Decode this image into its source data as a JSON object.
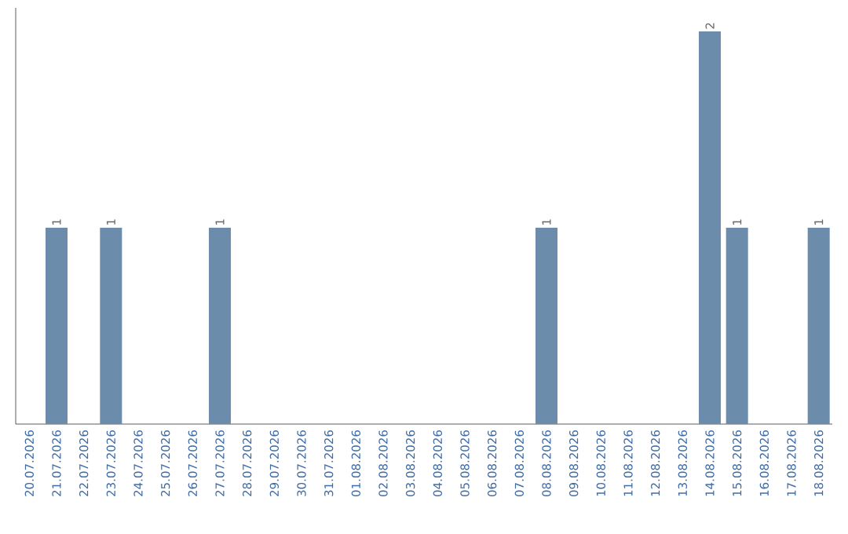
{
  "chart_data": {
    "type": "bar",
    "categories": [
      "20.07.2026",
      "21.07.2026",
      "22.07.2026",
      "23.07.2026",
      "24.07.2026",
      "25.07.2026",
      "26.07.2026",
      "27.07.2026",
      "28.07.2026",
      "29.07.2026",
      "30.07.2026",
      "31.07.2026",
      "01.08.2026",
      "02.08.2026",
      "03.08.2026",
      "04.08.2026",
      "05.08.2026",
      "06.08.2026",
      "07.08.2026",
      "08.08.2026",
      "09.08.2026",
      "10.08.2026",
      "11.08.2026",
      "12.08.2026",
      "13.08.2026",
      "14.08.2026",
      "15.08.2026",
      "16.08.2026",
      "17.08.2026",
      "18.08.2026"
    ],
    "values": [
      0,
      1,
      0,
      1,
      0,
      0,
      0,
      1,
      0,
      0,
      0,
      0,
      0,
      0,
      0,
      0,
      0,
      0,
      0,
      1,
      0,
      0,
      0,
      0,
      0,
      2,
      1,
      0,
      0,
      1
    ],
    "value_labels": [
      null,
      "1",
      null,
      "1",
      null,
      null,
      null,
      "1",
      null,
      null,
      null,
      null,
      null,
      null,
      null,
      null,
      null,
      null,
      null,
      "1",
      null,
      null,
      null,
      null,
      null,
      "2",
      "1",
      null,
      null,
      "1"
    ],
    "color": "#6b8caa"
  }
}
